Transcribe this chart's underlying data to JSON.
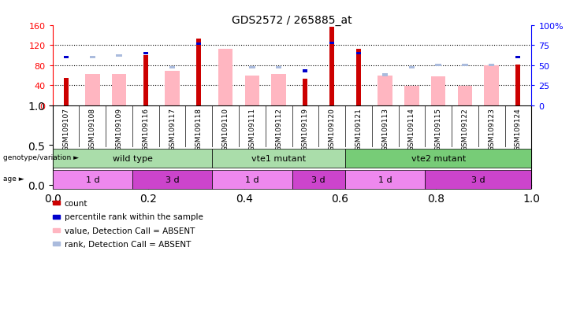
{
  "title": "GDS2572 / 265885_at",
  "samples": [
    "GSM109107",
    "GSM109108",
    "GSM109109",
    "GSM109116",
    "GSM109117",
    "GSM109118",
    "GSM109110",
    "GSM109111",
    "GSM109112",
    "GSM109119",
    "GSM109120",
    "GSM109121",
    "GSM109113",
    "GSM109114",
    "GSM109115",
    "GSM109122",
    "GSM109123",
    "GSM109124"
  ],
  "count": [
    55,
    0,
    0,
    100,
    0,
    133,
    0,
    0,
    0,
    53,
    157,
    113,
    0,
    0,
    0,
    0,
    0,
    82
  ],
  "percentile_rank": [
    60,
    0,
    0,
    65,
    0,
    77,
    0,
    0,
    0,
    43,
    78,
    65,
    0,
    0,
    0,
    0,
    0,
    60
  ],
  "value_absent": [
    0,
    62,
    62,
    0,
    68,
    0,
    113,
    60,
    63,
    0,
    0,
    0,
    60,
    38,
    58,
    38,
    80,
    0
  ],
  "rank_absent": [
    0,
    60,
    62,
    0,
    47,
    0,
    0,
    47,
    47,
    0,
    0,
    0,
    38,
    47,
    50,
    50,
    50,
    0
  ],
  "ylim_left": [
    0,
    160
  ],
  "ylim_right": [
    0,
    100
  ],
  "yticks_left": [
    0,
    40,
    80,
    120,
    160
  ],
  "ytick_labels_left": [
    "0",
    "40",
    "80",
    "120",
    "160"
  ],
  "yticks_right": [
    0,
    25,
    50,
    75,
    100
  ],
  "ytick_labels_right": [
    "0",
    "25",
    "50",
    "75",
    "100%"
  ],
  "geno_groups": [
    {
      "label": "wild type",
      "start": 0,
      "end": 6,
      "color": "#aaddaa"
    },
    {
      "label": "vte1 mutant",
      "start": 6,
      "end": 11,
      "color": "#aaddaa"
    },
    {
      "label": "vte2 mutant",
      "start": 11,
      "end": 18,
      "color": "#77cc77"
    }
  ],
  "age_groups": [
    {
      "label": "1 d",
      "start": 0,
      "end": 3,
      "color": "#ee88ee"
    },
    {
      "label": "3 d",
      "start": 3,
      "end": 6,
      "color": "#cc44cc"
    },
    {
      "label": "1 d",
      "start": 6,
      "end": 9,
      "color": "#ee88ee"
    },
    {
      "label": "3 d",
      "start": 9,
      "end": 11,
      "color": "#cc44cc"
    },
    {
      "label": "1 d",
      "start": 11,
      "end": 14,
      "color": "#ee88ee"
    },
    {
      "label": "3 d",
      "start": 14,
      "end": 18,
      "color": "#cc44cc"
    }
  ],
  "count_color": "#cc0000",
  "rank_color": "#0000cc",
  "value_absent_color": "#ffb6c1",
  "rank_absent_color": "#aabbdd",
  "bg_color": "#cccccc",
  "plot_bg": "#ffffff",
  "legend_items": [
    {
      "color": "#cc0000",
      "label": "count"
    },
    {
      "color": "#0000cc",
      "label": "percentile rank within the sample"
    },
    {
      "color": "#ffb6c1",
      "label": "value, Detection Call = ABSENT"
    },
    {
      "color": "#aabbdd",
      "label": "rank, Detection Call = ABSENT"
    }
  ]
}
